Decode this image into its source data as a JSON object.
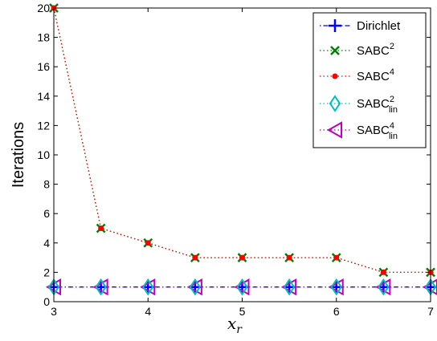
{
  "chart_data": {
    "type": "line",
    "xlabel": "x_r",
    "ylabel": "Iterations",
    "xlim": [
      3,
      7
    ],
    "ylim": [
      0,
      20
    ],
    "xticks": [
      3,
      4,
      5,
      6,
      7
    ],
    "yticks": [
      0,
      2,
      4,
      6,
      8,
      10,
      12,
      14,
      16,
      18,
      20
    ],
    "grid": false,
    "legend_position": "top-right",
    "x": [
      3,
      3.5,
      4,
      4.5,
      5,
      5.5,
      6,
      6.5,
      7
    ],
    "series": [
      {
        "name": "Dirichlet",
        "base": "Dirichlet",
        "sup": "",
        "sub": "",
        "color": "#0000ff",
        "marker": "plus",
        "values": [
          1,
          1,
          1,
          1,
          1,
          1,
          1,
          1,
          1
        ]
      },
      {
        "name": "SABC^2",
        "base": "SABC",
        "sup": "2",
        "sub": "",
        "color": "#007f00",
        "marker": "x",
        "values": [
          20,
          5,
          4,
          3,
          3,
          3,
          3,
          2,
          2
        ]
      },
      {
        "name": "SABC^4",
        "base": "SABC",
        "sup": "4",
        "sub": "",
        "color": "#ff0000",
        "marker": "dot",
        "values": [
          20,
          5,
          4,
          3,
          3,
          3,
          3,
          2,
          2
        ]
      },
      {
        "name": "SABC^2_lin",
        "base": "SABC",
        "sup": "2",
        "sub": "lin",
        "color": "#00bfbf",
        "marker": "diamond",
        "values": [
          1,
          1,
          1,
          1,
          1,
          1,
          1,
          1,
          1
        ]
      },
      {
        "name": "SABC^4_lin",
        "base": "SABC",
        "sup": "4",
        "sub": "lin",
        "color": "#bf00bf",
        "marker": "triangle-left",
        "values": [
          1,
          1,
          1,
          1,
          1,
          1,
          1,
          1,
          1
        ]
      }
    ]
  }
}
